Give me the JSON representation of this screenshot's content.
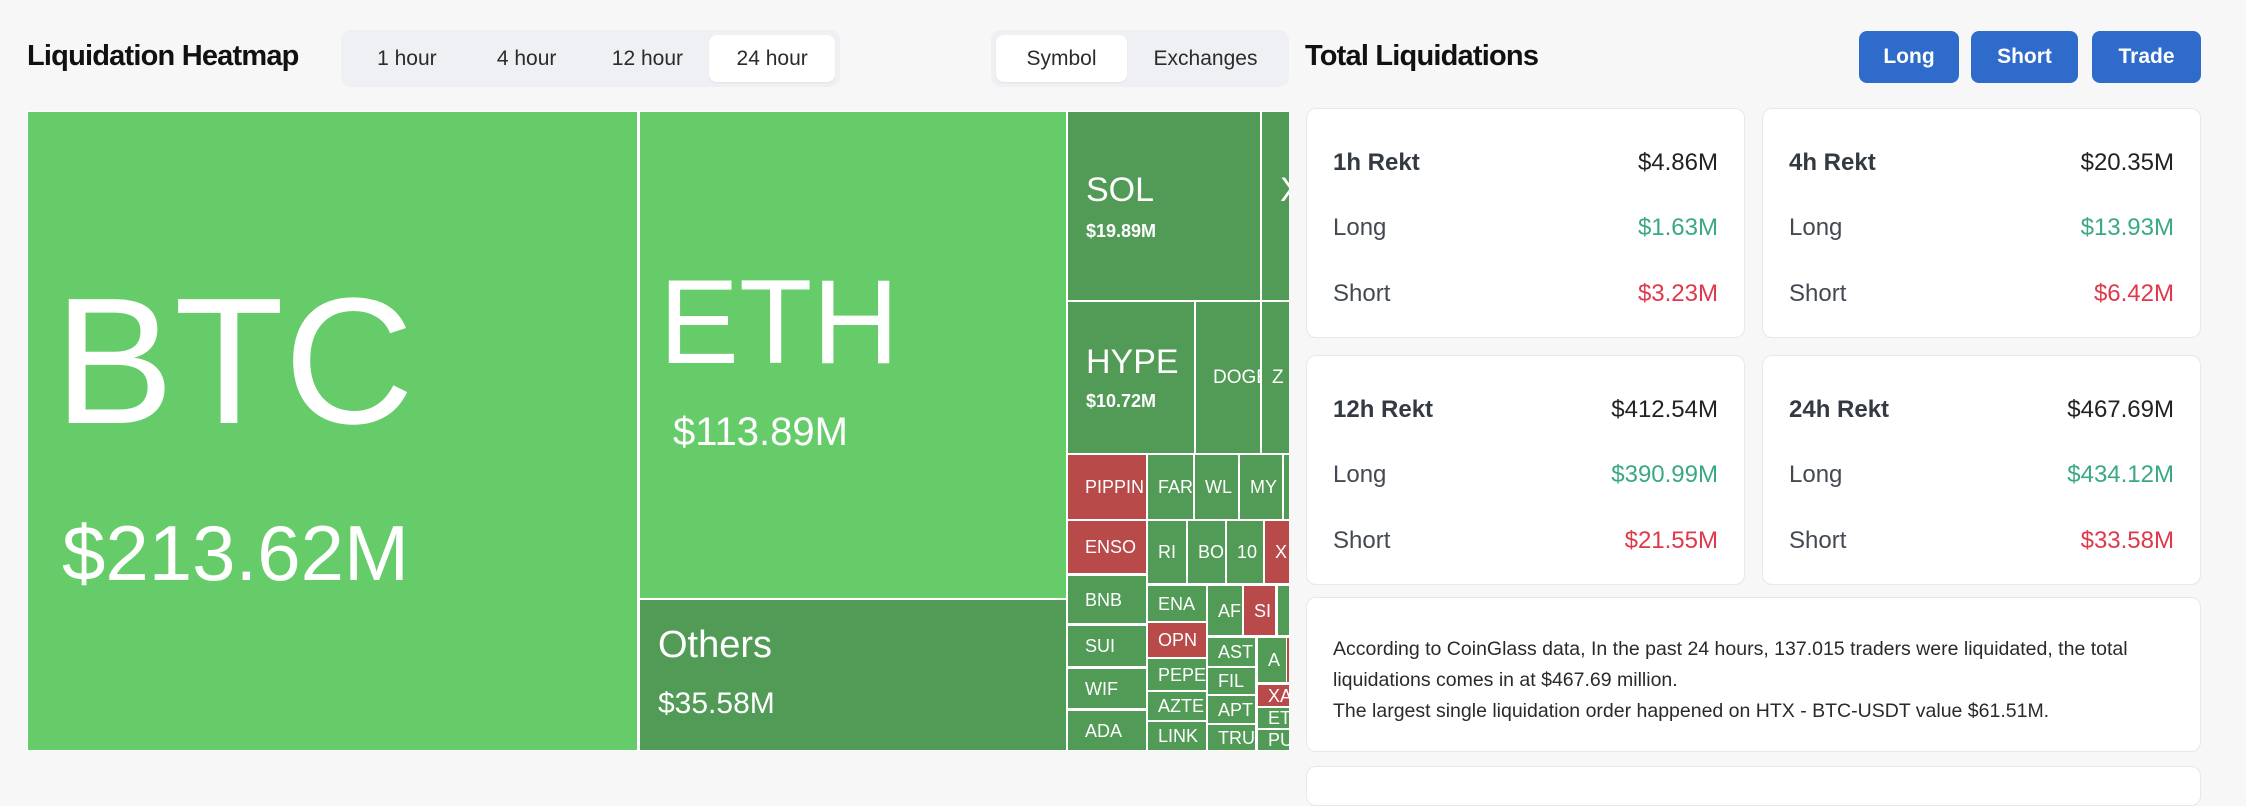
{
  "heatmap": {
    "title": "Liquidation Heatmap",
    "time_tabs": [
      {
        "label": "1 hour",
        "active": false
      },
      {
        "label": "4 hour",
        "active": false
      },
      {
        "label": "12 hour",
        "active": false
      },
      {
        "label": "24 hour",
        "active": true
      }
    ],
    "group_tabs": [
      {
        "label": "Symbol",
        "active": true
      },
      {
        "label": "Exchanges",
        "active": false
      }
    ],
    "colors": {
      "long_large": "#66cc6a",
      "long": "#519b57",
      "short": "#b84a4a"
    },
    "cells": [
      {
        "symbol": "BTC",
        "value": "$213.62M",
        "side": "long_large"
      },
      {
        "symbol": "ETH",
        "value": "$113.89M",
        "side": "long_large"
      },
      {
        "symbol": "Others",
        "value": "$35.58M",
        "side": "long"
      },
      {
        "symbol": "SOL",
        "value": "$19.89M",
        "side": "long"
      },
      {
        "symbol": "X",
        "value": "",
        "side": "long"
      },
      {
        "symbol": "HYPE",
        "value": "$10.72M",
        "side": "long"
      },
      {
        "symbol": "DOGE",
        "value": "",
        "side": "long"
      },
      {
        "symbol": "Z",
        "value": "",
        "side": "long"
      },
      {
        "symbol": "PIPPIN",
        "value": "",
        "side": "short"
      },
      {
        "symbol": "FAR",
        "value": "",
        "side": "long"
      },
      {
        "symbol": "WL",
        "value": "",
        "side": "long"
      },
      {
        "symbol": "MY",
        "value": "",
        "side": "long"
      },
      {
        "symbol": "",
        "value": "",
        "side": "long"
      },
      {
        "symbol": "ENSO",
        "value": "",
        "side": "short"
      },
      {
        "symbol": "RI",
        "value": "",
        "side": "long"
      },
      {
        "symbol": "BO",
        "value": "",
        "side": "long"
      },
      {
        "symbol": "10",
        "value": "",
        "side": "long"
      },
      {
        "symbol": "X",
        "value": "",
        "side": "short"
      },
      {
        "symbol": "BNB",
        "value": "",
        "side": "long"
      },
      {
        "symbol": "SUI",
        "value": "",
        "side": "long"
      },
      {
        "symbol": "WIF",
        "value": "",
        "side": "long"
      },
      {
        "symbol": "ADA",
        "value": "",
        "side": "long"
      },
      {
        "symbol": "ENA",
        "value": "",
        "side": "long"
      },
      {
        "symbol": "AF",
        "value": "",
        "side": "long"
      },
      {
        "symbol": "SI",
        "value": "",
        "side": "short"
      },
      {
        "symbol": "",
        "value": "",
        "side": "long"
      },
      {
        "symbol": "OPN",
        "value": "",
        "side": "short"
      },
      {
        "symbol": "PEPE",
        "value": "",
        "side": "long"
      },
      {
        "symbol": "AZTE",
        "value": "",
        "side": "long"
      },
      {
        "symbol": "LINK",
        "value": "",
        "side": "long"
      },
      {
        "symbol": "AST",
        "value": "",
        "side": "long"
      },
      {
        "symbol": "FIL",
        "value": "",
        "side": "long"
      },
      {
        "symbol": "APT",
        "value": "",
        "side": "long"
      },
      {
        "symbol": "TRU",
        "value": "",
        "side": "long"
      },
      {
        "symbol": "A",
        "value": "",
        "side": "long"
      },
      {
        "symbol": "",
        "value": "",
        "side": "short"
      },
      {
        "symbol": "XA",
        "value": "",
        "side": "short"
      },
      {
        "symbol": "ET",
        "value": "",
        "side": "long"
      },
      {
        "symbol": "PU",
        "value": "",
        "side": "long"
      }
    ]
  },
  "totals": {
    "title": "Total Liquidations",
    "buttons": {
      "long": "Long",
      "short": "Short",
      "trade": "Trade"
    },
    "cards": [
      {
        "label": "1h Rekt",
        "total": "$4.86M",
        "long_label": "Long",
        "long": "$1.63M",
        "short_label": "Short",
        "short": "$3.23M"
      },
      {
        "label": "4h Rekt",
        "total": "$20.35M",
        "long_label": "Long",
        "long": "$13.93M",
        "short_label": "Short",
        "short": "$6.42M"
      },
      {
        "label": "12h Rekt",
        "total": "$412.54M",
        "long_label": "Long",
        "long": "$390.99M",
        "short_label": "Short",
        "short": "$21.55M"
      },
      {
        "label": "24h Rekt",
        "total": "$467.69M",
        "long_label": "Long",
        "long": "$434.12M",
        "short_label": "Short",
        "short": "$33.58M"
      }
    ],
    "summary_line1": "According to CoinGlass data, In the past 24 hours, 137.015 traders were liquidated, the total liquidations comes in at $467.69 million.",
    "summary_line2": "The largest single liquidation order happened on HTX - BTC-USDT value $61.51M."
  }
}
